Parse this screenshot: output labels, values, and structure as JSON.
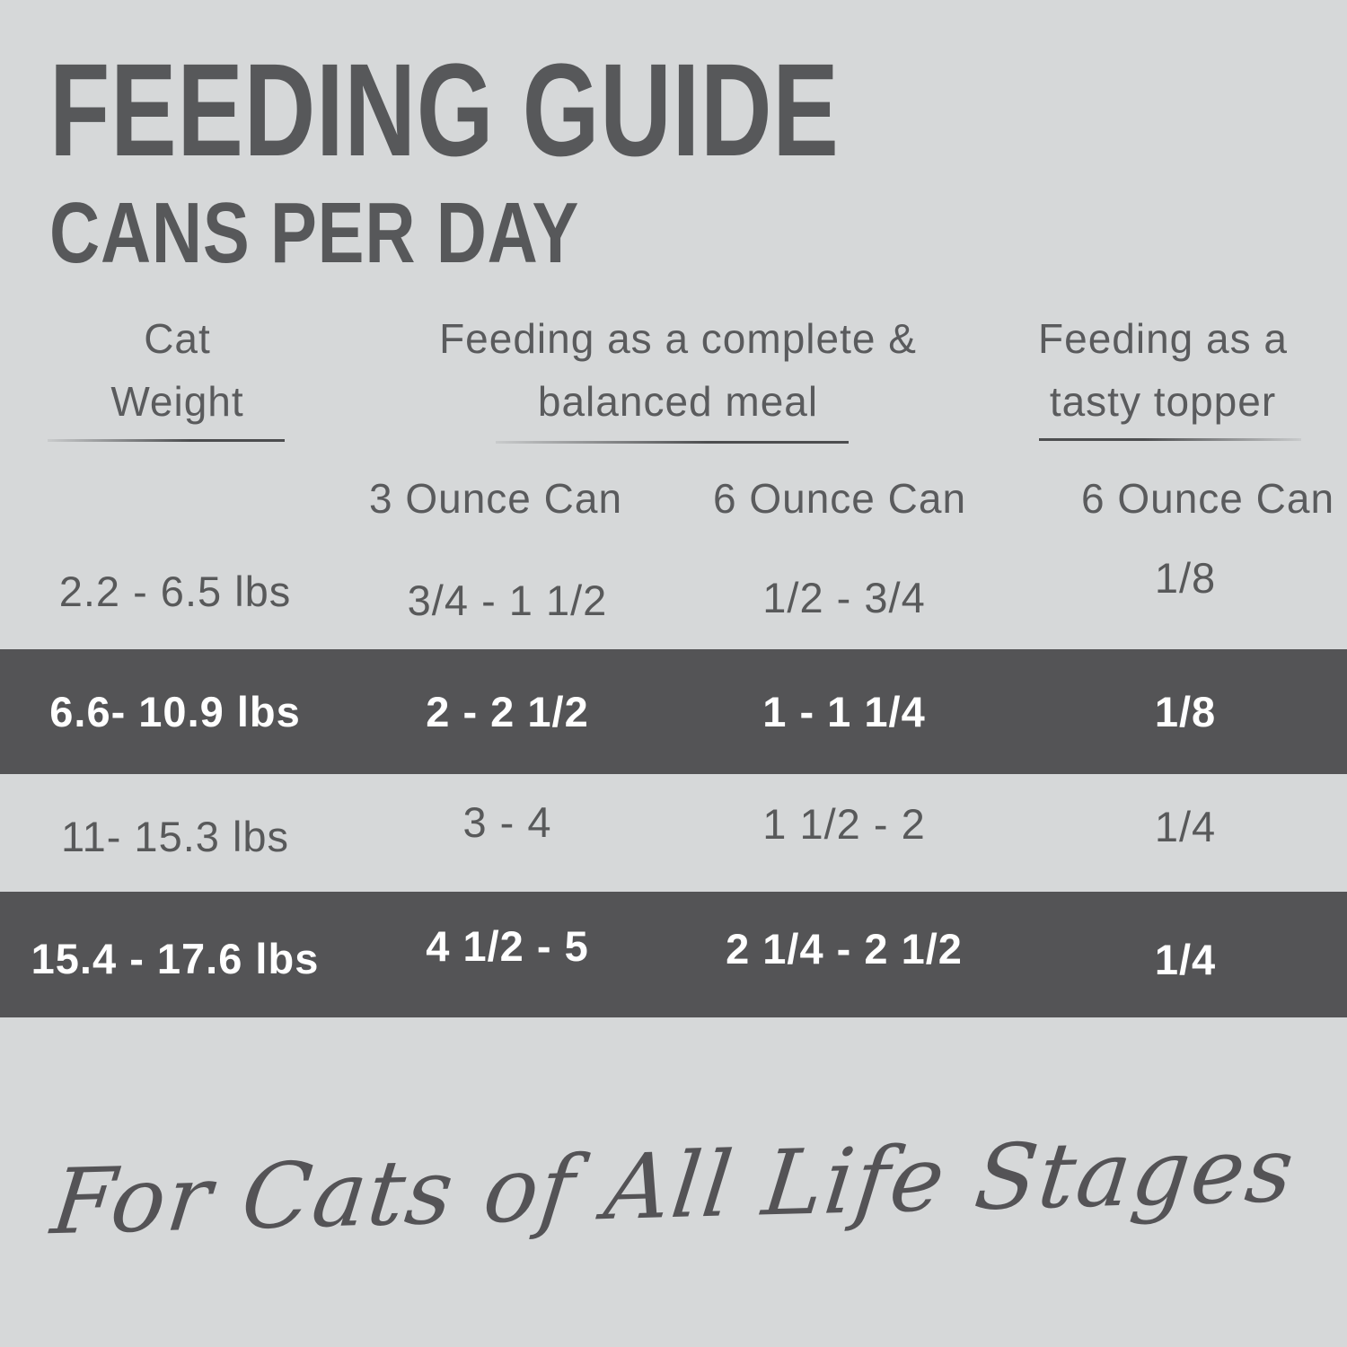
{
  "colors": {
    "background": "#d6d8d9",
    "highlight_row_background": "#545456",
    "text_primary": "#57585a",
    "text_on_dark": "#ffffff"
  },
  "header": {
    "title": "FEEDING GUIDE",
    "subtitle": "CANS PER DAY"
  },
  "chart_data": {
    "type": "table",
    "title": "FEEDING GUIDE",
    "subtitle": "CANS PER DAY",
    "column_groups": [
      {
        "line1": "Cat",
        "line2": "Weight"
      },
      {
        "line1": "Feeding as a complete &",
        "line2": "balanced meal"
      },
      {
        "line1": "Feeding as a",
        "line2": "tasty topper"
      }
    ],
    "sub_headers": [
      "3 Ounce Can",
      "6 Ounce Can",
      "6 Ounce Can"
    ],
    "columns": [
      "Cat Weight",
      "Complete & balanced meal - 3 Ounce Can",
      "Complete & balanced meal - 6 Ounce Can",
      "Tasty topper - 6 Ounce Can"
    ],
    "rows": [
      {
        "highlight": false,
        "cells": [
          "2.2 - 6.5 lbs",
          "3/4 - 1 1/2",
          "1/2 - 3/4",
          "1/8"
        ]
      },
      {
        "highlight": true,
        "cells": [
          "6.6- 10.9 lbs",
          "2 - 2 1/2",
          "1 - 1 1/4",
          "1/8"
        ]
      },
      {
        "highlight": false,
        "cells": [
          "11- 15.3 lbs",
          "3 - 4",
          "1 1/2 - 2",
          "1/4"
        ]
      },
      {
        "highlight": true,
        "cells": [
          "15.4 - 17.6 lbs",
          "4 1/2 - 5",
          "2 1/4 - 2 1/2",
          "1/4"
        ]
      }
    ],
    "footnote": "For Cats of All Life Stages"
  }
}
